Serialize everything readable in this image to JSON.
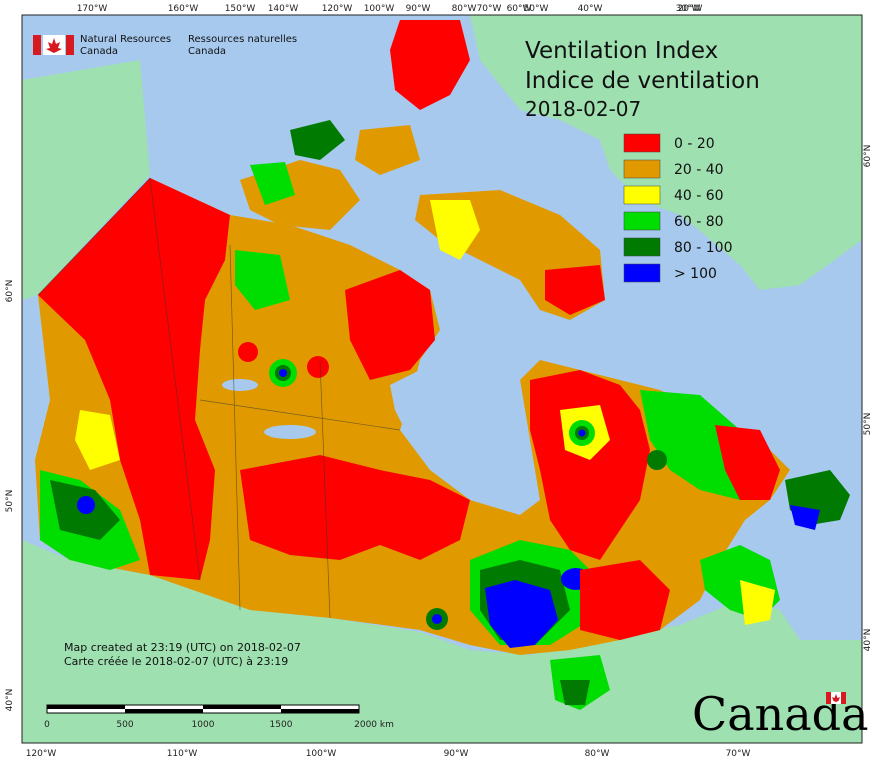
{
  "header": {
    "agency_en_line1": "Natural Resources",
    "agency_en_line2": "Canada",
    "agency_fr_line1": "Ressources naturelles",
    "agency_fr_line2": "Canada"
  },
  "map": {
    "title_en": "Ventilation Index",
    "title_fr": "Indice de ventilation",
    "date": "2018-02-07",
    "legend": [
      {
        "label": "0 - 20",
        "color": "#ff0000"
      },
      {
        "label": "20 - 40",
        "color": "#e09a00"
      },
      {
        "label": "40 - 60",
        "color": "#ffff00"
      },
      {
        "label": "60 - 80",
        "color": "#00dd00"
      },
      {
        "label": "80 - 100",
        "color": "#007a00"
      },
      {
        "label": "> 100",
        "color": "#0000ff"
      }
    ],
    "colors": {
      "ocean": "#a7c9ee",
      "land_outside": "#9fe0b0",
      "border": "#333333"
    },
    "top_ticks": [
      "170°W",
      "160°W",
      "150°W",
      "140°W",
      "120°W",
      "100°W",
      "90°W",
      "80°W",
      "70°W",
      "60°W",
      "50°W",
      "40°W",
      "30°W",
      "20°W"
    ],
    "bottom_ticks": [
      "120°W",
      "110°W",
      "100°W",
      "90°W",
      "80°W",
      "70°W"
    ],
    "left_ticks": [
      "60°N",
      "50°N",
      "40°N"
    ],
    "right_ticks": [
      "60°N",
      "50°N",
      "40°N"
    ],
    "created_en": "Map created at 23:19 (UTC) on 2018-02-07",
    "created_fr": "Carte créée le 2018-02-07 (UTC) à 23:19",
    "scale_labels": [
      "0",
      "500",
      "1000",
      "1500",
      "2000 km"
    ],
    "wordmark": "Canada"
  }
}
